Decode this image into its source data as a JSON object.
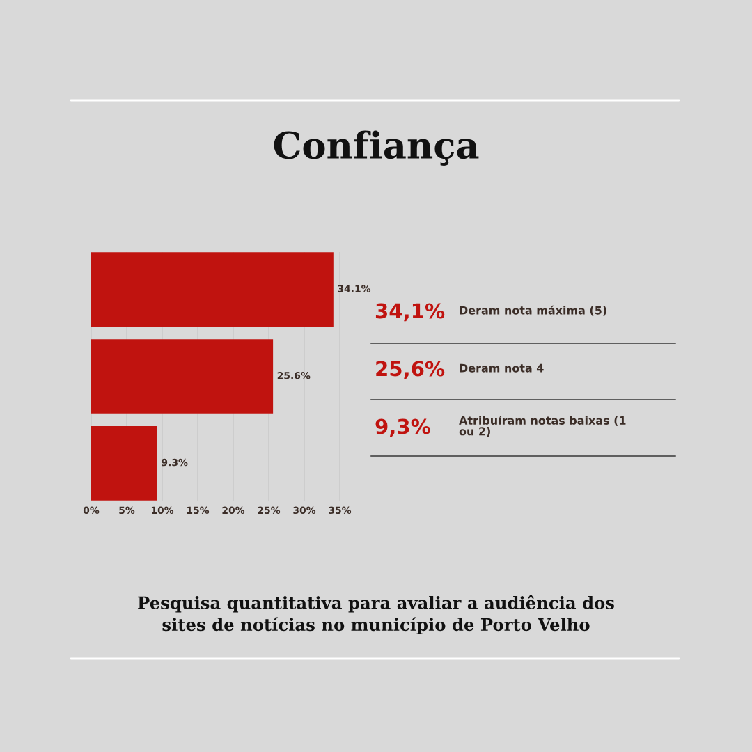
{
  "chart_data": [
    {
      "type": "bar",
      "title": "Confiança",
      "orientation": "horizontal",
      "categories": [
        null,
        null,
        null
      ],
      "values": [
        34.1,
        25.6,
        9.3
      ],
      "color": "#c0130f",
      "value_labels": [
        "34.1%",
        "25.6%",
        "9.3%"
      ],
      "xlim": [
        0,
        35
      ],
      "xticks": [
        {
          "value": 0,
          "label": "0%"
        },
        {
          "value": 5,
          "label": "5%"
        },
        {
          "value": 10,
          "label": "10%"
        },
        {
          "value": 15,
          "label": "15%"
        },
        {
          "value": 20,
          "label": "20%"
        },
        {
          "value": 25,
          "label": "25%"
        },
        {
          "value": 30,
          "label": "30%"
        },
        {
          "value": 35,
          "label": "35%"
        }
      ],
      "grid": "x",
      "annotations": [
        "Pesquisa quantitativa para avaliar a audiência dos\nsites de notícias no município de Porto Velho"
      ]
    },
    {
      "type": "other",
      "color": "#c0130f",
      "annotations": [
        "34,1%",
        "Deram nota máxima (5)",
        "25,6%",
        "Deram nota 4",
        "9,3%",
        "Atribuíram notas baixas (1\nou 2)"
      ]
    }
  ]
}
